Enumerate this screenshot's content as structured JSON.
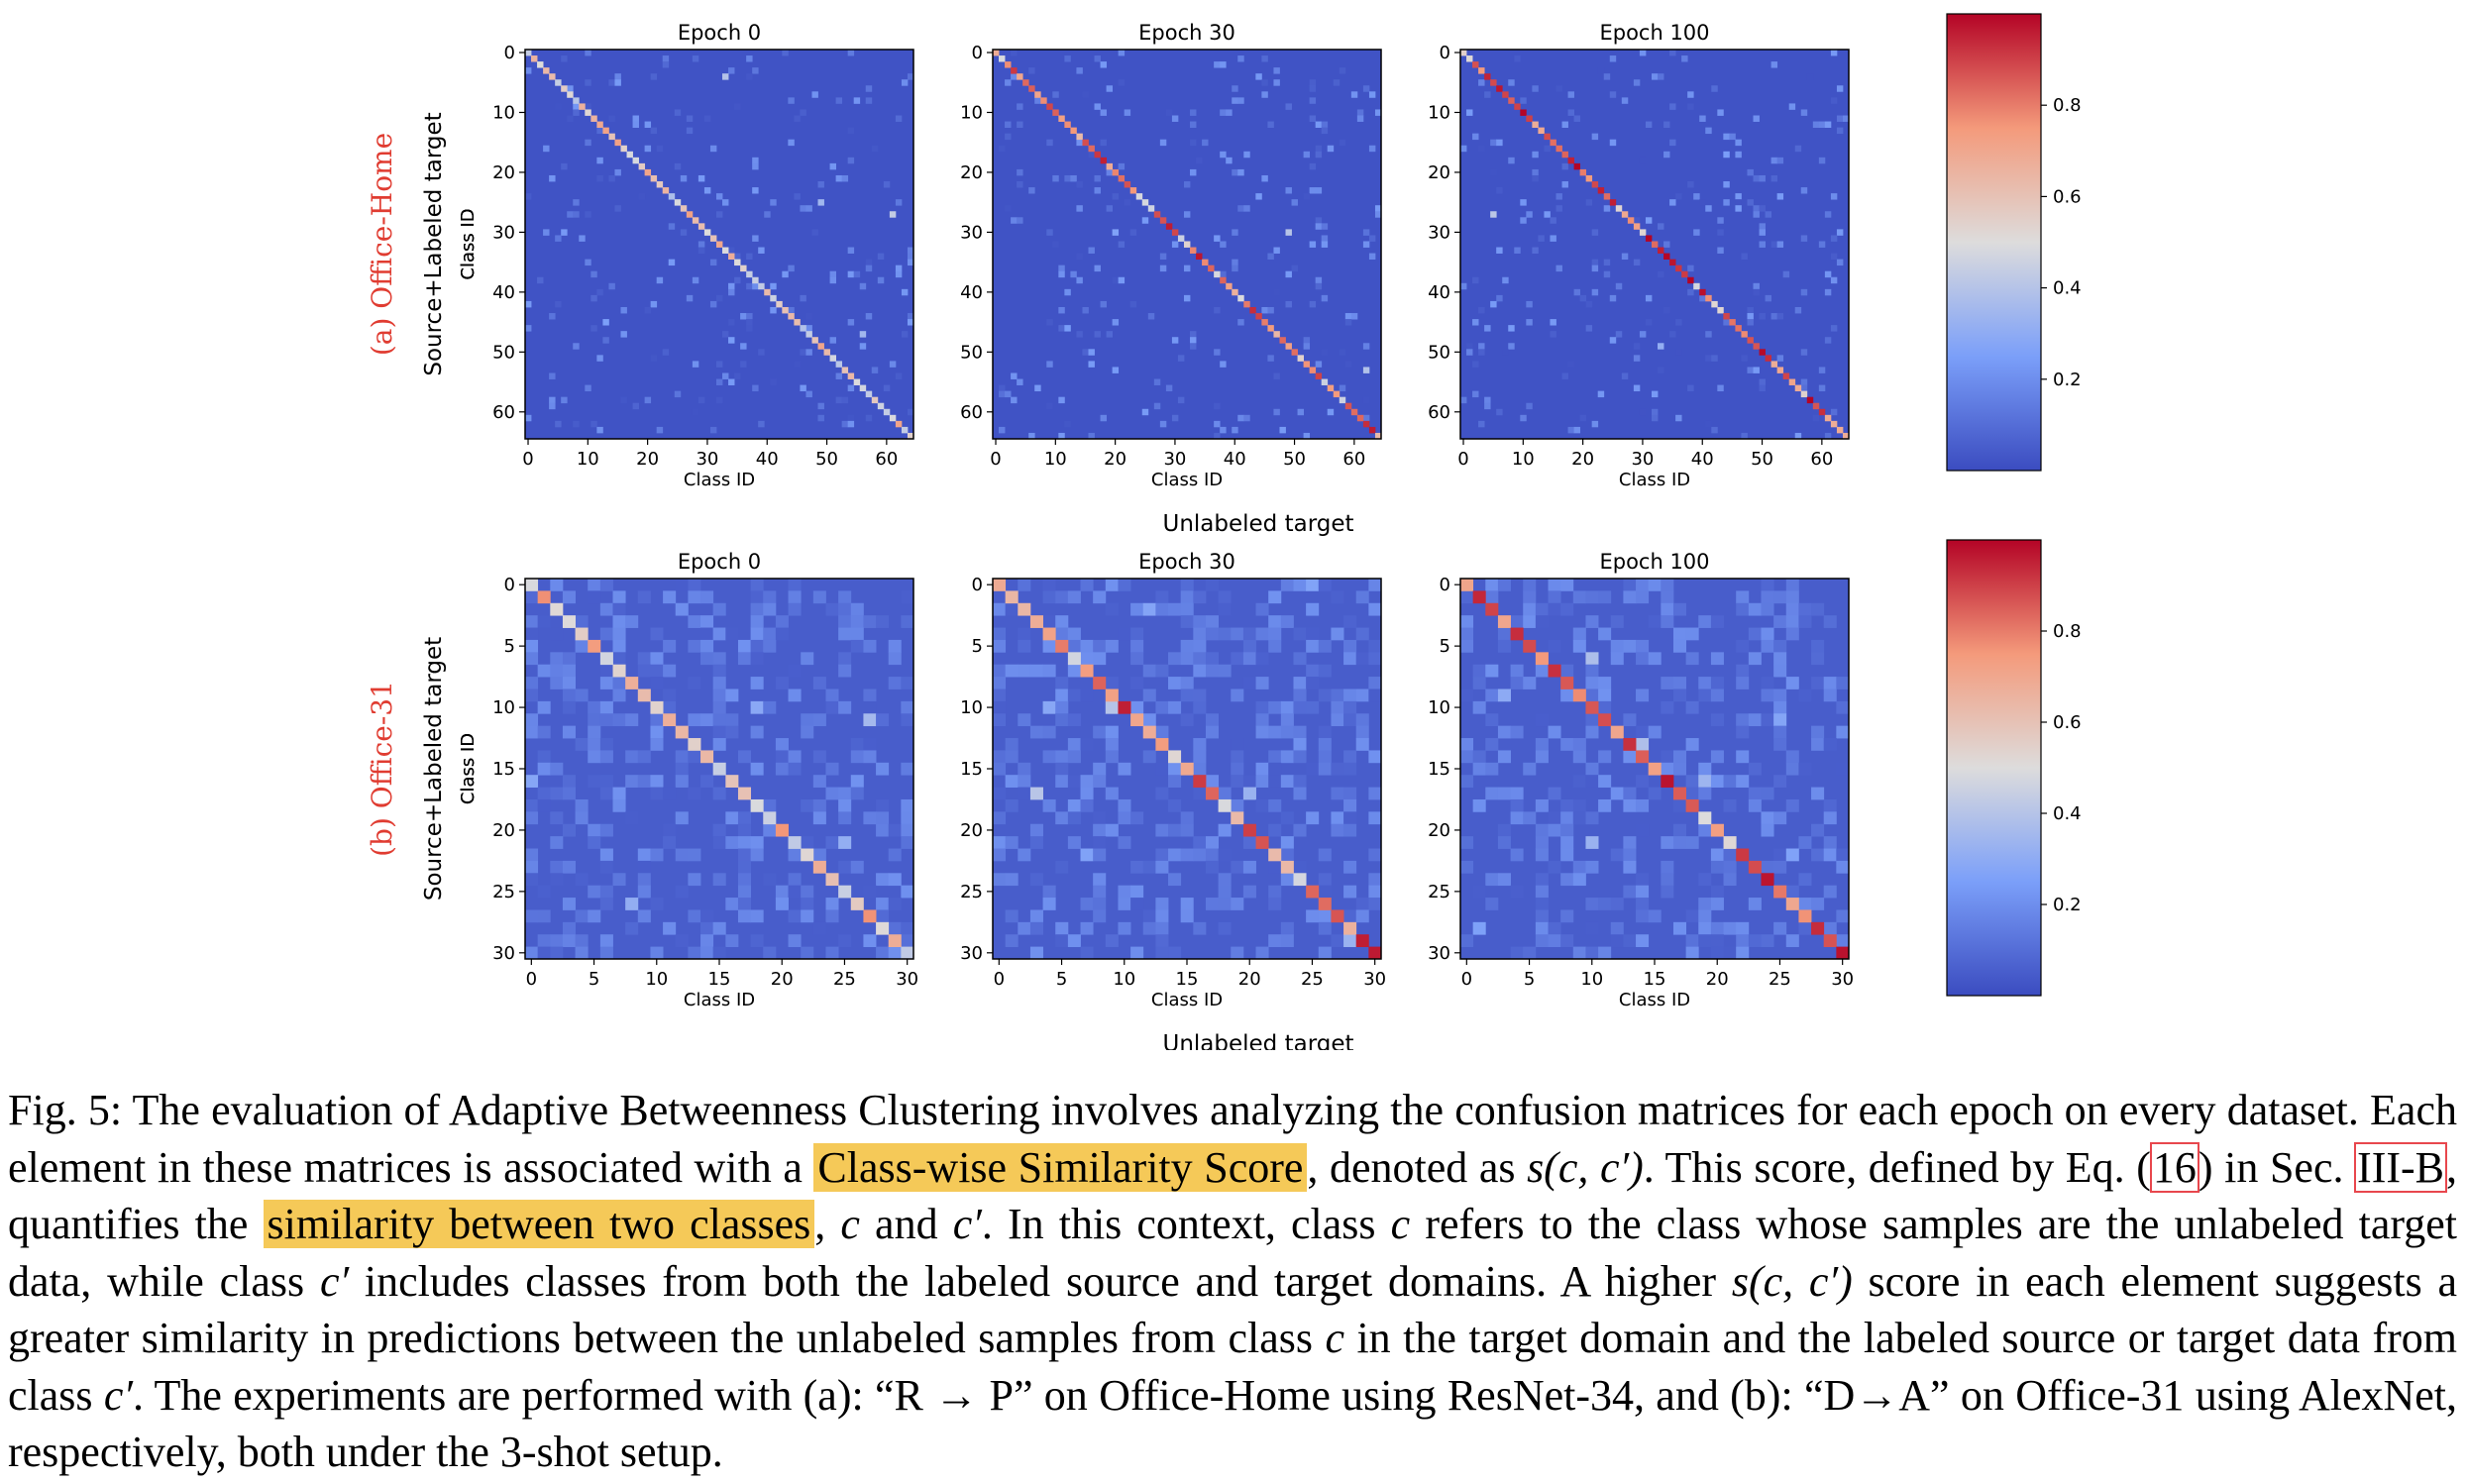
{
  "figure": {
    "rows": [
      {
        "row_label": "(a) Office-Home",
        "ylabel_outer": "Source+Labeled target",
        "xlabel_outer": "Unlabeled target",
        "n_classes": 65,
        "panels": [
          {
            "title": "Epoch 0",
            "xlabel": "Class ID",
            "ylabel": "Class ID",
            "ticks": [
              "0",
              "10",
              "20",
              "30",
              "40",
              "50",
              "60"
            ]
          },
          {
            "title": "Epoch 30",
            "xlabel": "Class ID",
            "ylabel": "Class ID",
            "ticks": [
              "0",
              "10",
              "20",
              "30",
              "40",
              "50",
              "60"
            ]
          },
          {
            "title": "Epoch 100",
            "xlabel": "Class ID",
            "ylabel": "Class ID",
            "ticks": [
              "0",
              "10",
              "20",
              "30",
              "40",
              "50",
              "60"
            ]
          }
        ],
        "colorbar_ticks": [
          "0.2",
          "0.4",
          "0.6",
          "0.8"
        ]
      },
      {
        "row_label": "(b) Office-31",
        "ylabel_outer": "Source+Labeled target",
        "xlabel_outer": "Unlabeled target",
        "n_classes": 31,
        "panels": [
          {
            "title": "Epoch 0",
            "xlabel": "Class ID",
            "ylabel": "Class ID",
            "ticks": [
              "0",
              "5",
              "10",
              "15",
              "20",
              "25",
              "30"
            ]
          },
          {
            "title": "Epoch 30",
            "xlabel": "Class ID",
            "ylabel": "Class ID",
            "ticks": [
              "0",
              "5",
              "10",
              "15",
              "20",
              "25",
              "30"
            ]
          },
          {
            "title": "Epoch 100",
            "xlabel": "Class ID",
            "ylabel": "Class ID",
            "ticks": [
              "0",
              "5",
              "10",
              "15",
              "20",
              "25",
              "30"
            ]
          }
        ],
        "colorbar_ticks": [
          "0.2",
          "0.4",
          "0.6",
          "0.8"
        ]
      }
    ],
    "row_label_color": "#e03c31",
    "colormap": "coolwarm"
  },
  "chart_data": [
    {
      "type": "heatmap",
      "title": "Epoch 0",
      "xlabel": "Class ID",
      "ylabel": "Class ID",
      "n": 65,
      "x_ticks": [
        0,
        10,
        20,
        30,
        40,
        50,
        60
      ],
      "y_ticks": [
        0,
        10,
        20,
        30,
        40,
        50,
        60
      ],
      "colorbar_range": [
        0,
        1
      ],
      "diagonal_level": 0.55,
      "offdiag_level": 0.02,
      "colorbar_ticks": [
        0.2,
        0.4,
        0.6,
        0.8
      ]
    },
    {
      "type": "heatmap",
      "title": "Epoch 30",
      "xlabel": "Class ID",
      "ylabel": "Class ID",
      "n": 65,
      "x_ticks": [
        0,
        10,
        20,
        30,
        40,
        50,
        60
      ],
      "y_ticks": [
        0,
        10,
        20,
        30,
        40,
        50,
        60
      ],
      "colorbar_range": [
        0,
        1
      ],
      "diagonal_level": 0.8,
      "offdiag_level": 0.02,
      "colorbar_ticks": [
        0.2,
        0.4,
        0.6,
        0.8
      ]
    },
    {
      "type": "heatmap",
      "title": "Epoch 100",
      "xlabel": "Class ID",
      "ylabel": "Class ID",
      "n": 65,
      "x_ticks": [
        0,
        10,
        20,
        30,
        40,
        50,
        60
      ],
      "y_ticks": [
        0,
        10,
        20,
        30,
        40,
        50,
        60
      ],
      "colorbar_range": [
        0,
        1
      ],
      "diagonal_level": 0.85,
      "offdiag_level": 0.02,
      "colorbar_ticks": [
        0.2,
        0.4,
        0.6,
        0.8
      ]
    },
    {
      "type": "heatmap",
      "title": "Epoch 0",
      "xlabel": "Class ID",
      "ylabel": "Class ID",
      "n": 31,
      "x_ticks": [
        0,
        5,
        10,
        15,
        20,
        25,
        30
      ],
      "y_ticks": [
        0,
        5,
        10,
        15,
        20,
        25,
        30
      ],
      "colorbar_range": [
        0,
        1
      ],
      "diagonal_level": 0.6,
      "offdiag_level": 0.05,
      "colorbar_ticks": [
        0.2,
        0.4,
        0.6,
        0.8
      ]
    },
    {
      "type": "heatmap",
      "title": "Epoch 30",
      "xlabel": "Class ID",
      "ylabel": "Class ID",
      "n": 31,
      "x_ticks": [
        0,
        5,
        10,
        15,
        20,
        25,
        30
      ],
      "y_ticks": [
        0,
        5,
        10,
        15,
        20,
        25,
        30
      ],
      "colorbar_range": [
        0,
        1
      ],
      "diagonal_level": 0.8,
      "offdiag_level": 0.05,
      "colorbar_ticks": [
        0.2,
        0.4,
        0.6,
        0.8
      ]
    },
    {
      "type": "heatmap",
      "title": "Epoch 100",
      "xlabel": "Class ID",
      "ylabel": "Class ID",
      "n": 31,
      "x_ticks": [
        0,
        5,
        10,
        15,
        20,
        25,
        30
      ],
      "y_ticks": [
        0,
        5,
        10,
        15,
        20,
        25,
        30
      ],
      "colorbar_range": [
        0,
        1
      ],
      "diagonal_level": 0.82,
      "offdiag_level": 0.05,
      "colorbar_ticks": [
        0.2,
        0.4,
        0.6,
        0.8
      ]
    }
  ],
  "caption": {
    "p1": "Fig. 5: The evaluation of Adaptive Betweenness Clustering involves analyzing the confusion matrices for each epoch on every dataset. Each element in these matrices is associated with a ",
    "hl1": "Class-wise Similarity Score",
    "p2": ", denoted as ",
    "math_s": "s(c, c′)",
    "p3": ". This score, defined by Eq. (",
    "ref_eq": "16",
    "p4": ") in Sec. ",
    "ref_sec": "III-B",
    "p5": ", quantifies the ",
    "hl2": "similarity between two classes",
    "p6": ", ",
    "math_c1": "c",
    "p7": " and ",
    "math_c2": "c′",
    "p8": ". In this context, class ",
    "math_c3": "c",
    "p9": " refers to the class whose samples are the unlabeled target data, while class ",
    "math_c4": "c′",
    "p10": " includes classes from both the labeled source and target domains. A higher ",
    "math_s2": "s(c, c′)",
    "p11": " score in each element suggests a greater similarity in predictions between the unlabeled samples from class ",
    "math_c5": "c",
    "p12": " in the target domain and the labeled source or target data from class ",
    "math_c6": "c′",
    "p13": ". The experiments are performed with (a): “R → P” on Office-Home using ResNet-34, and (b): “D→A” on Office-31 using AlexNet, respectively, both under the 3-shot setup."
  }
}
